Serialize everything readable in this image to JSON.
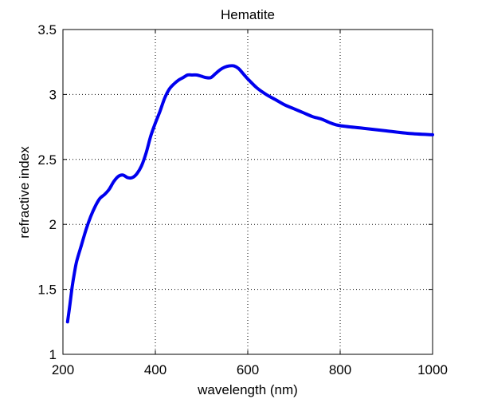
{
  "chart_data": {
    "type": "line",
    "title": "Hematite",
    "xlabel": "wavelength (nm)",
    "ylabel": "refractive index",
    "xlim": [
      200,
      1000
    ],
    "ylim": [
      1,
      3.5
    ],
    "x_ticks": [
      200,
      400,
      600,
      800,
      1000
    ],
    "y_ticks": [
      1,
      1.5,
      2,
      2.5,
      3,
      3.5
    ],
    "x_tick_labels": [
      "200",
      "400",
      "600",
      "800",
      "1000"
    ],
    "y_tick_labels": [
      "1",
      "1.5",
      "2",
      "2.5",
      "3",
      "3.5"
    ],
    "grid": true,
    "grid_style": "dotted",
    "line_color": "#0000ee",
    "series": [
      {
        "x": [
          210,
          215,
          220,
          225,
          230,
          240,
          250,
          260,
          270,
          280,
          290,
          300,
          310,
          320,
          330,
          340,
          350,
          360,
          370,
          380,
          390,
          400,
          410,
          420,
          430,
          440,
          450,
          460,
          470,
          480,
          490,
          500,
          510,
          520,
          530,
          540,
          550,
          560,
          570,
          580,
          590,
          600,
          620,
          640,
          660,
          680,
          700,
          720,
          740,
          760,
          780,
          800,
          850,
          900,
          950,
          1000
        ],
        "y": [
          1.25,
          1.38,
          1.52,
          1.63,
          1.72,
          1.84,
          1.96,
          2.06,
          2.14,
          2.2,
          2.23,
          2.27,
          2.33,
          2.37,
          2.38,
          2.36,
          2.36,
          2.39,
          2.45,
          2.55,
          2.68,
          2.78,
          2.87,
          2.97,
          3.04,
          3.08,
          3.11,
          3.13,
          3.15,
          3.15,
          3.15,
          3.14,
          3.13,
          3.13,
          3.16,
          3.19,
          3.21,
          3.22,
          3.22,
          3.2,
          3.16,
          3.12,
          3.05,
          3.0,
          2.96,
          2.92,
          2.89,
          2.86,
          2.83,
          2.81,
          2.78,
          2.76,
          2.74,
          2.72,
          2.7,
          2.69
        ]
      }
    ]
  }
}
